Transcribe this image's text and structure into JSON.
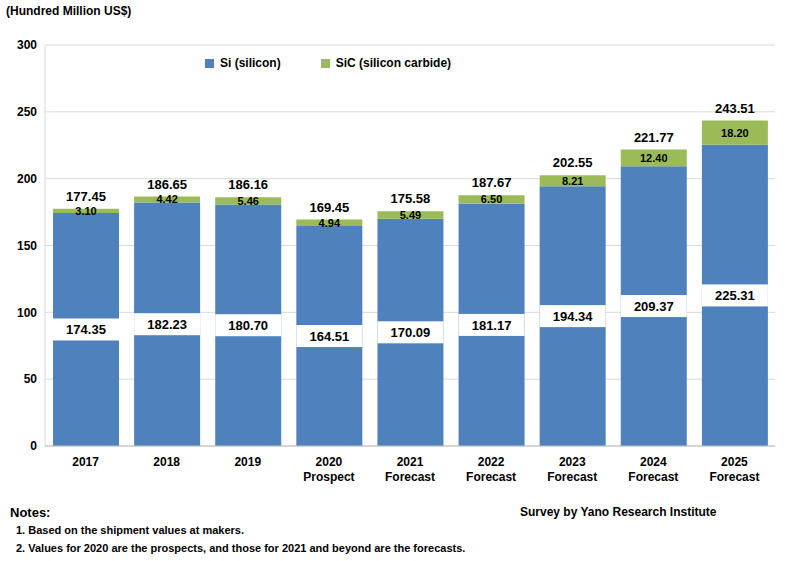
{
  "chart_data": {
    "type": "bar",
    "stacked": true,
    "ylabel": "(Hundred Million US$)",
    "categories": [
      "2017",
      "2018",
      "2019",
      "2020\nProspect",
      "2021\nForecast",
      "2022\nForecast",
      "2023\nForecast",
      "2024\nForecast",
      "2025\nForecast"
    ],
    "series": [
      {
        "name": "Si (silicon)",
        "color": "#4f81bd",
        "values": [
          174.35,
          182.23,
          180.7,
          164.51,
          170.09,
          181.17,
          194.34,
          209.37,
          225.31
        ],
        "value_labels": [
          "174.35",
          "182.23",
          "180.70",
          "164.51",
          "170.09",
          "181.17",
          "194.34",
          "209.37",
          "225.31"
        ]
      },
      {
        "name": "SiC (silicon carbide)",
        "color": "#9bbb59",
        "values": [
          3.1,
          4.42,
          5.46,
          4.94,
          5.49,
          6.5,
          8.21,
          12.4,
          18.2
        ],
        "value_labels": [
          "3.10",
          "4.42",
          "5.46",
          "4.94",
          "5.49",
          "6.50",
          "8.21",
          "12.40",
          "18.20"
        ]
      }
    ],
    "totals": [
      177.45,
      186.65,
      186.16,
      169.45,
      175.58,
      187.67,
      202.55,
      221.77,
      243.51
    ],
    "ylim": [
      0,
      300
    ],
    "yticks": [
      0,
      50,
      100,
      150,
      200,
      250,
      300
    ],
    "grid": true,
    "legend": "top",
    "data_labels": true,
    "notes_title": "Notes:",
    "notes": [
      "1. Based on the shipment values at makers.",
      "2. Values for 2020 are the prospects, and those for 2021 and beyond are the forecasts."
    ],
    "source": "Survey by Yano Research Institute"
  }
}
